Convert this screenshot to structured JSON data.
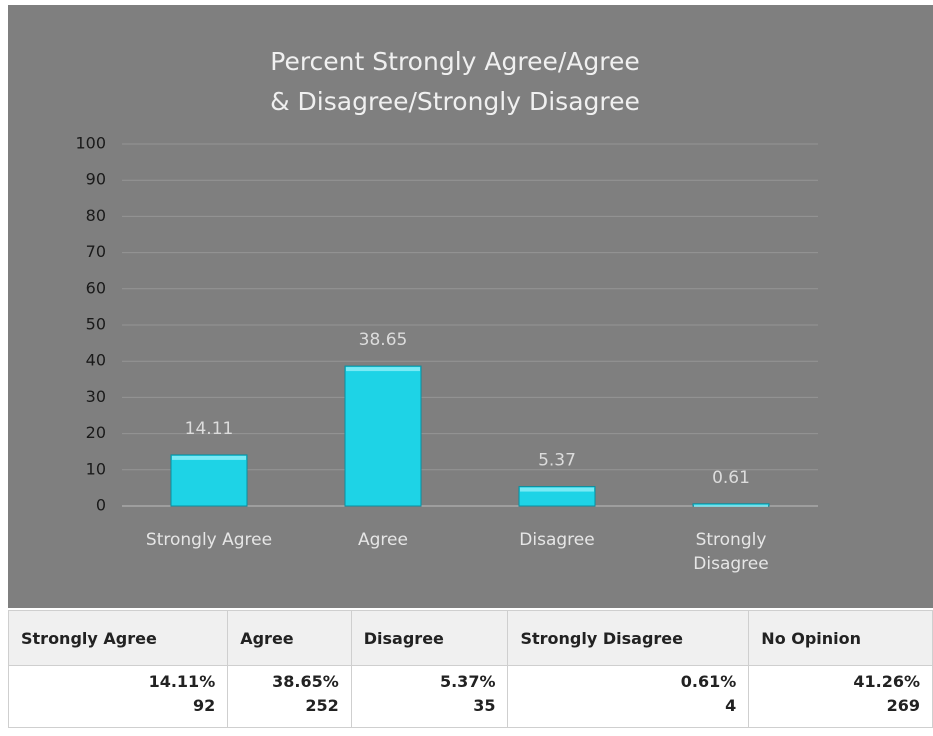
{
  "chart_data": {
    "type": "bar",
    "title": [
      "Percent Strongly Agree/Agree",
      "& Disagree/Strongly Disagree"
    ],
    "categories": [
      "Strongly Agree",
      "Agree",
      "Disagree",
      "Strongly Disagree"
    ],
    "values": [
      14.11,
      38.65,
      5.37,
      0.61
    ],
    "color": "#1ed3e6",
    "ylim": [
      0,
      100
    ],
    "yticks": [
      0,
      10,
      20,
      30,
      40,
      50,
      60,
      70,
      80,
      90,
      100
    ],
    "grid": true
  },
  "table": {
    "header": [
      "Strongly Agree",
      "Agree",
      "Disagree",
      "Strongly Disagree",
      "No Opinion"
    ],
    "rows": [
      [
        {
          "percent": "14.11%",
          "count": 92
        },
        {
          "percent": "38.65%",
          "count": 252
        },
        {
          "percent": "5.37%",
          "count": 35
        },
        {
          "percent": "0.61%",
          "count": 4
        },
        {
          "percent": "41.26%",
          "count": 269
        }
      ]
    ]
  }
}
